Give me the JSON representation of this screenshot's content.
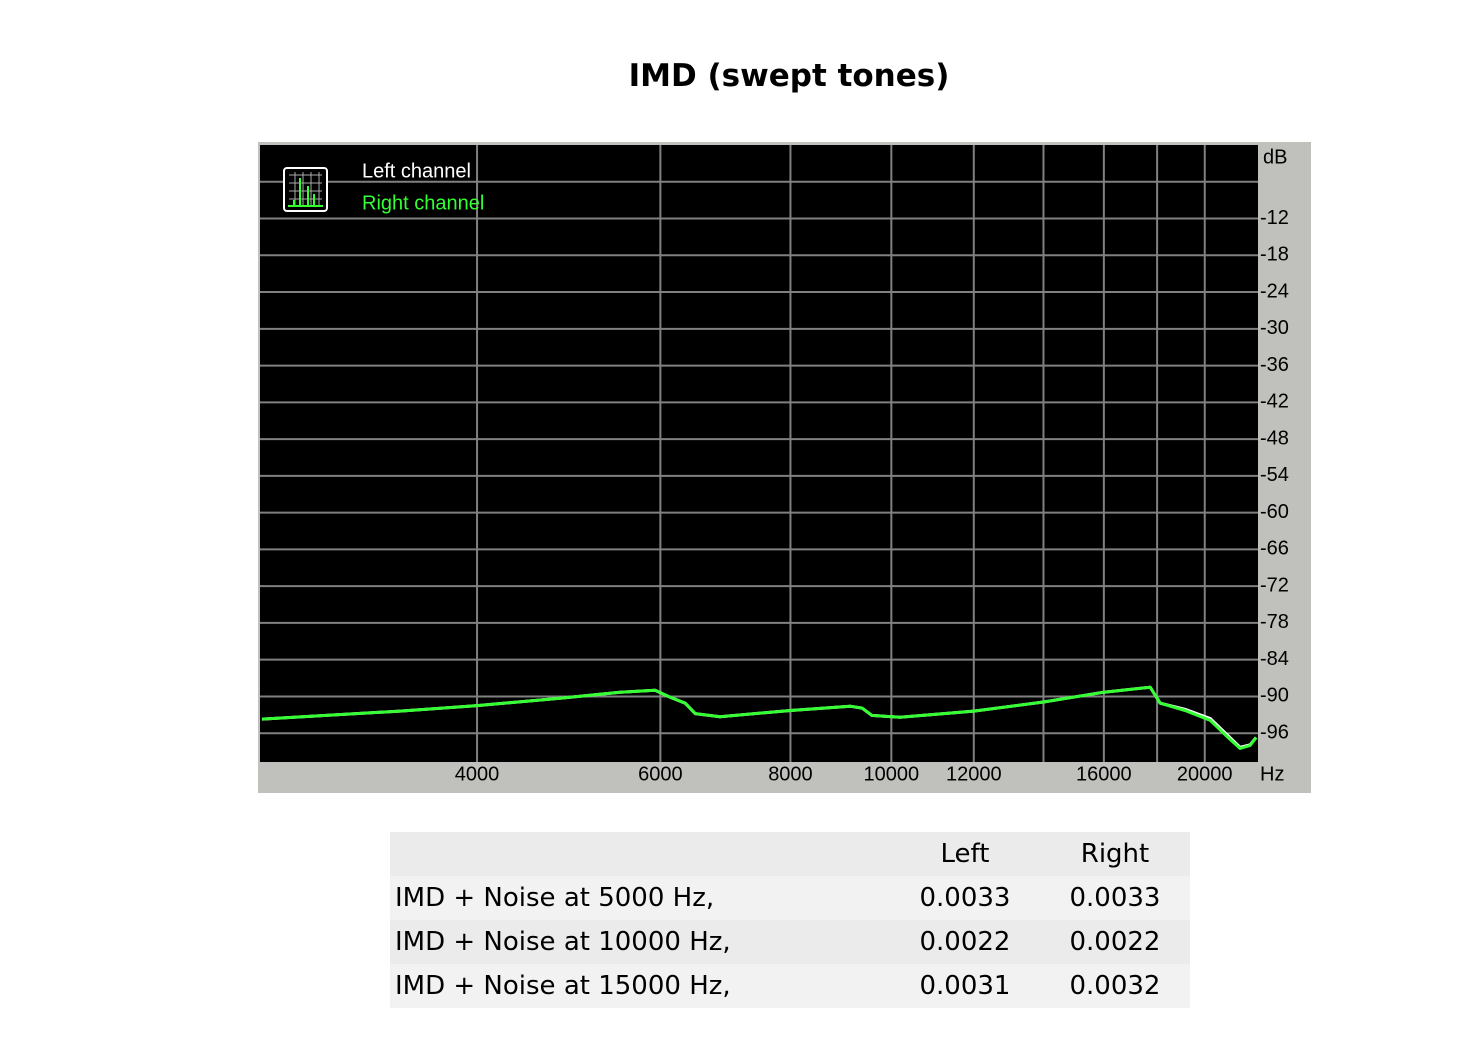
{
  "chart_data": {
    "type": "line",
    "title": "IMD (swept tones)",
    "x_label": "Hz",
    "y_label": "dB",
    "xlog": true,
    "grid": true,
    "xlim": [
      2475,
      22500
    ],
    "xticks": [
      4000,
      6000,
      8000,
      10000,
      12000,
      16000,
      20000
    ],
    "x_minor_grid": [
      14000,
      18000
    ],
    "ylim": [
      -100.7,
      0
    ],
    "yticks": [
      -12,
      -18,
      -24,
      -30,
      -36,
      -42,
      -48,
      -54,
      -60,
      -66,
      -72,
      -78,
      -84,
      -90,
      -96
    ],
    "y_minor_grid": [
      -6
    ],
    "x": [
      2486,
      3373,
      4000,
      4805,
      5488,
      5931,
      6128,
      6339,
      6480,
      6846,
      8000,
      9128,
      9373,
      9580,
      10196,
      12000,
      14000,
      16000,
      17728,
      18123,
      19148,
      20241,
      21060,
      21628,
      22108,
      22408
    ],
    "series": [
      {
        "name": "Left channel",
        "color": "#ffffff",
        "values": [
          -93.7,
          -92.4,
          -91.5,
          -90.3,
          -89.3,
          -89.0,
          -90.1,
          -91.1,
          -92.8,
          -93.3,
          -92.3,
          -91.6,
          -91.9,
          -93.1,
          -93.4,
          -92.4,
          -90.9,
          -89.3,
          -88.5,
          -91.1,
          -92.1,
          -93.6,
          -96.4,
          -98.3,
          -97.9,
          -96.7
        ]
      },
      {
        "name": "Right channel",
        "color": "#33ff33",
        "values": [
          -93.7,
          -92.4,
          -91.5,
          -90.3,
          -89.3,
          -89.0,
          -90.1,
          -91.1,
          -92.8,
          -93.3,
          -92.3,
          -91.6,
          -91.9,
          -93.1,
          -93.4,
          -92.4,
          -90.9,
          -89.3,
          -88.5,
          -91.1,
          -92.3,
          -93.9,
          -96.7,
          -98.5,
          -98.0,
          -96.7
        ]
      }
    ]
  },
  "table": {
    "header": [
      "Left",
      "Right"
    ],
    "rows": [
      [
        "IMD + Noise at 5000 Hz,",
        0.0033,
        0.0033
      ],
      [
        "IMD + Noise at 10000 Hz,",
        0.0022,
        0.0022
      ],
      [
        "IMD + Noise at 15000 Hz,",
        0.0031,
        0.0032
      ]
    ]
  }
}
